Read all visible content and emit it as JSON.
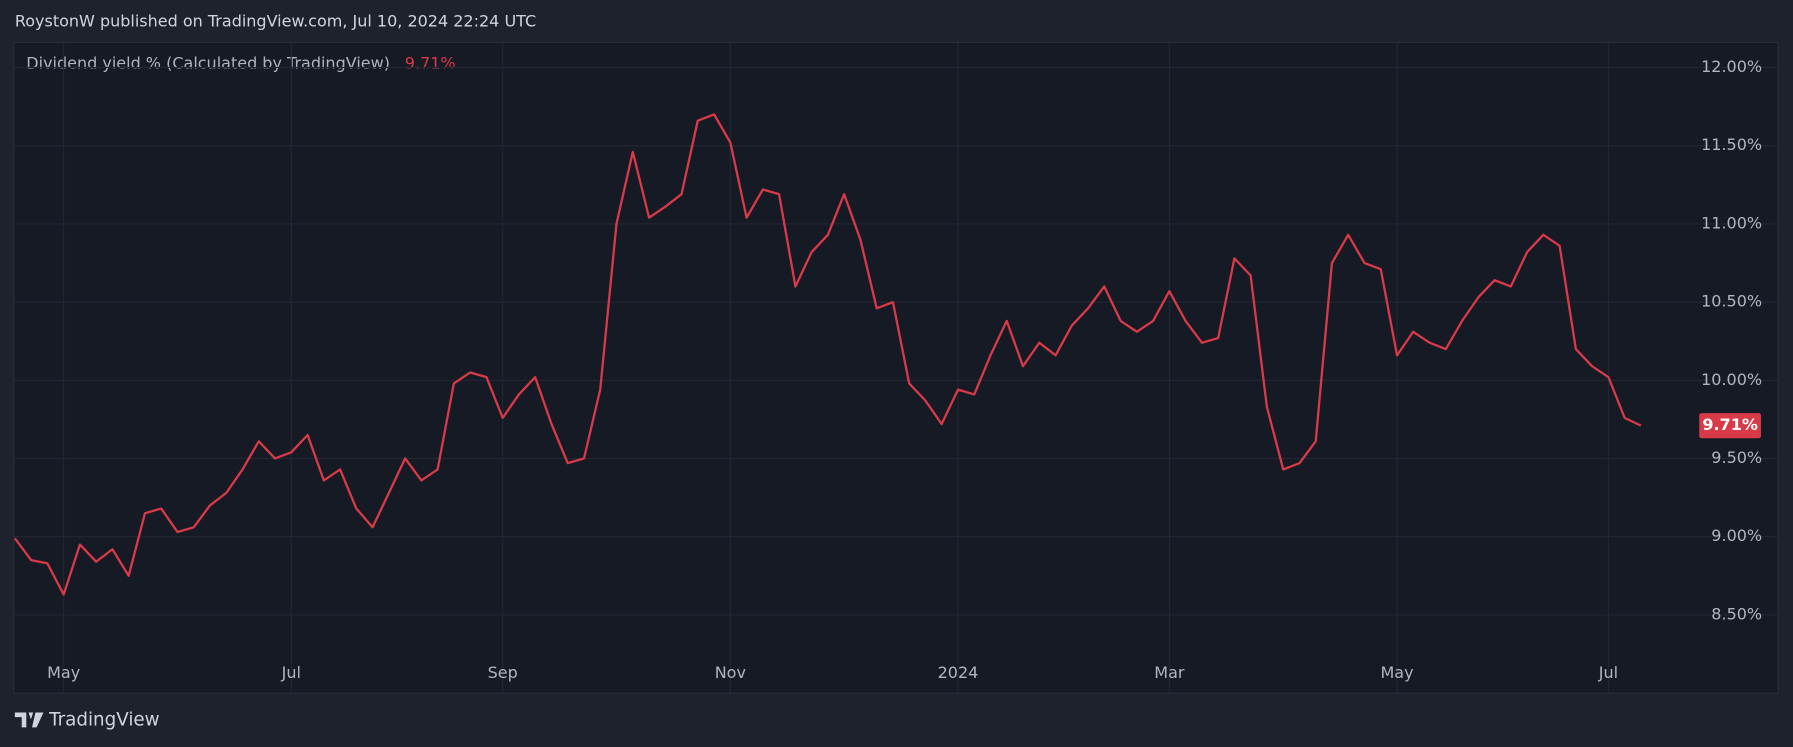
{
  "header": "RoystonW published on TradingView.com, Jul 10, 2024 22:24 UTC",
  "footer": "TradingView",
  "chart_data": {
    "type": "line",
    "categories": [
      null,
      null,
      null,
      "May",
      null,
      null,
      null,
      null,
      null,
      null,
      null,
      null,
      null,
      null,
      null,
      null,
      null,
      "Jul",
      null,
      null,
      null,
      null,
      null,
      null,
      null,
      null,
      null,
      null,
      null,
      null,
      "Sep",
      null,
      null,
      null,
      null,
      null,
      null,
      null,
      null,
      null,
      null,
      null,
      null,
      null,
      "Nov",
      null,
      null,
      null,
      null,
      null,
      null,
      null,
      null,
      null,
      null,
      null,
      null,
      null,
      "2024",
      null,
      null,
      null,
      null,
      null,
      null,
      null,
      null,
      null,
      null,
      null,
      null,
      "Mar",
      null,
      null,
      null,
      null,
      null,
      null,
      null,
      null,
      null,
      null,
      null,
      null,
      null,
      "May",
      null,
      null,
      null,
      null,
      null,
      null,
      null,
      null,
      null,
      null,
      null,
      null,
      "Jul",
      null,
      null
    ],
    "series": [
      {
        "name": "Dividend yield % (Calculated by TradingView)",
        "color": "#d83a47",
        "last_label": "9.71%",
        "values": [
          8.99,
          8.85,
          8.83,
          8.63,
          8.95,
          8.84,
          8.92,
          8.75,
          9.15,
          9.18,
          9.03,
          9.06,
          9.2,
          9.28,
          9.43,
          9.61,
          9.5,
          9.54,
          9.65,
          9.36,
          9.43,
          9.18,
          9.06,
          9.28,
          9.5,
          9.36,
          9.43,
          9.98,
          10.05,
          10.02,
          9.76,
          9.91,
          10.02,
          9.72,
          9.47,
          9.5,
          9.94,
          11.0,
          11.46,
          11.04,
          11.11,
          11.19,
          11.66,
          11.7,
          11.52,
          11.04,
          11.22,
          11.19,
          10.6,
          10.82,
          10.93,
          11.19,
          10.9,
          10.46,
          10.5,
          9.98,
          9.87,
          9.72,
          9.94,
          9.91,
          10.16,
          10.38,
          10.09,
          10.24,
          10.16,
          10.35,
          10.46,
          10.6,
          10.38,
          10.31,
          10.38,
          10.57,
          10.38,
          10.24,
          10.27,
          10.78,
          10.67,
          9.83,
          9.43,
          9.47,
          9.61,
          10.75,
          10.93,
          10.75,
          10.71,
          10.16,
          10.31,
          10.24,
          10.2,
          10.38,
          10.53,
          10.64,
          10.6,
          10.82,
          10.93,
          10.86,
          10.2,
          10.09,
          10.02,
          9.76,
          9.71
        ]
      }
    ],
    "ylim": [
      8.0,
      12.16
    ],
    "yticks": [
      {
        "value": 8.5,
        "label": "8.50%"
      },
      {
        "value": 9.0,
        "label": "9.00%"
      },
      {
        "value": 9.5,
        "label": "9.50%"
      },
      {
        "value": 10.0,
        "label": "10.00%"
      },
      {
        "value": 10.5,
        "label": "10.50%"
      },
      {
        "value": 11.0,
        "label": "11.00%"
      },
      {
        "value": 11.5,
        "label": "11.50%"
      },
      {
        "value": 12.0,
        "label": "12.00%"
      }
    ],
    "grid": true
  }
}
